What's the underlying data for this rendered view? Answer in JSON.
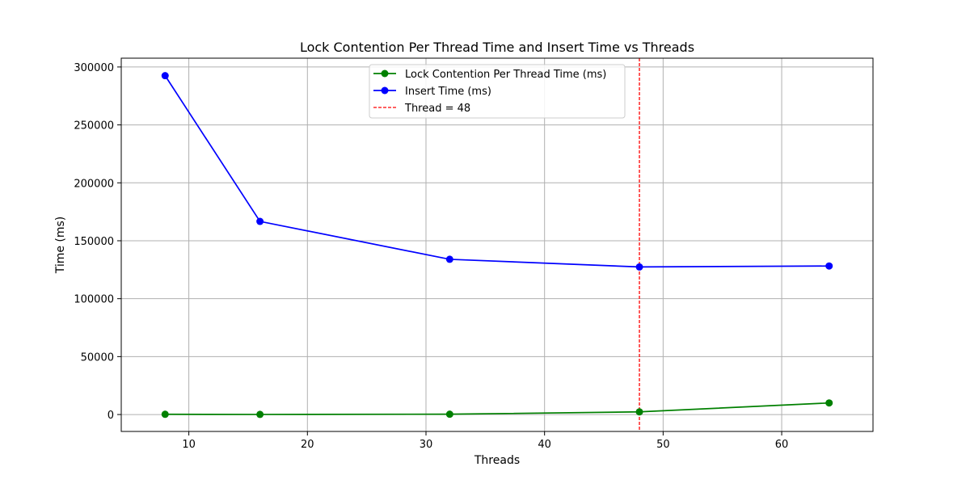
{
  "chart_data": {
    "type": "line",
    "title": "Lock Contention Per Thread Time and Insert Time vs Threads",
    "xlabel": "Threads",
    "ylabel": "Time (ms)",
    "x": [
      8,
      16,
      32,
      48,
      64
    ],
    "xlim": [
      4.3,
      67.7
    ],
    "ylim": [
      -14600,
      307600
    ],
    "xticks": [
      10,
      20,
      30,
      40,
      50,
      60
    ],
    "xtick_labels": [
      "10",
      "20",
      "30",
      "40",
      "50",
      "60"
    ],
    "yticks": [
      0,
      50000,
      100000,
      150000,
      200000,
      250000,
      300000
    ],
    "ytick_labels": [
      "0",
      "50000",
      "100000",
      "150000",
      "200000",
      "250000",
      "300000"
    ],
    "grid": true,
    "legend_position": "top-center",
    "series": [
      {
        "name": "Lock Contention Per Thread Time (ms)",
        "color": "#008000",
        "marker": "circle",
        "values": [
          200,
          100,
          300,
          2300,
          10000
        ]
      },
      {
        "name": "Insert Time (ms)",
        "color": "#0000ff",
        "marker": "circle",
        "values": [
          292500,
          166700,
          134000,
          127400,
          128200
        ]
      }
    ],
    "reference_lines": [
      {
        "name": "Thread = 48",
        "orientation": "vertical",
        "x": 48,
        "color": "#ff0000",
        "style": "dashed"
      }
    ]
  }
}
